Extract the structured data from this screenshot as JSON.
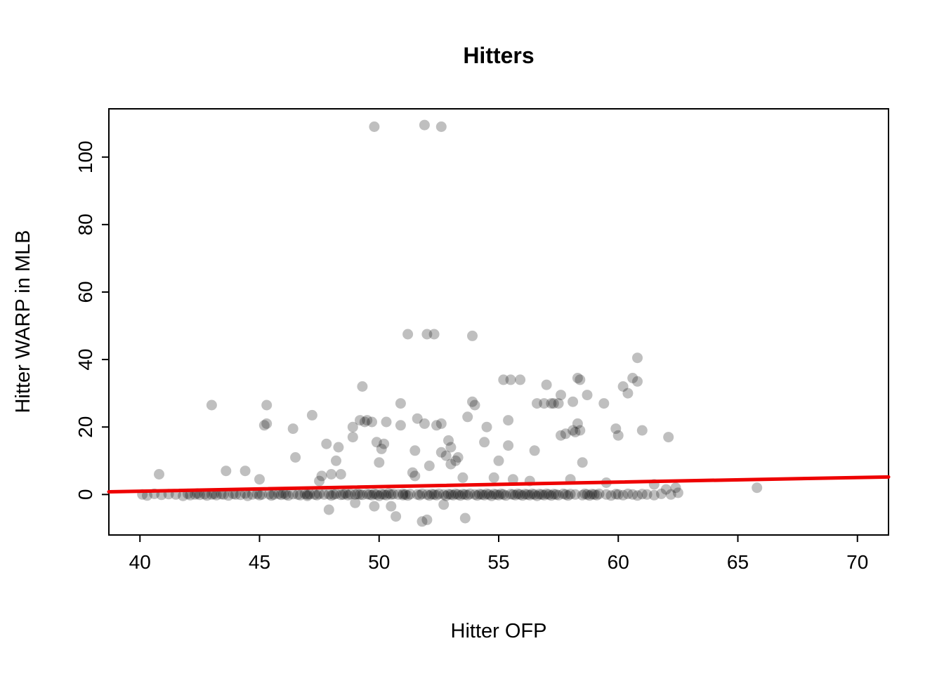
{
  "page": {
    "background_color": "#ffffff"
  },
  "chart_data": {
    "type": "scatter",
    "title": "Hitters",
    "xlabel": "Hitter OFP",
    "ylabel": "Hitter WARP in MLB",
    "xlim": [
      38.7,
      71.3
    ],
    "ylim": [
      -12,
      114.3
    ],
    "xticks": [
      40,
      45,
      50,
      55,
      60,
      65,
      70
    ],
    "yticks": [
      0,
      20,
      40,
      60,
      80,
      100
    ],
    "grid": false,
    "legend": "none",
    "point_style": {
      "color": "#000000",
      "opacity": 0.25,
      "radius": 7.5
    },
    "regression_line": {
      "color": "#EE0000",
      "width": 5,
      "x": [
        38.7,
        71.3
      ],
      "y": [
        0.8,
        5.2
      ]
    },
    "points": [
      [
        40.1,
        0
      ],
      [
        40.3,
        -0.3
      ],
      [
        40.6,
        0.2
      ],
      [
        40.8,
        6
      ],
      [
        40.9,
        -0.1
      ],
      [
        41.2,
        0.1
      ],
      [
        41.5,
        0
      ],
      [
        41.8,
        -0.4
      ],
      [
        42.0,
        0.2
      ],
      [
        42.1,
        -0.2
      ],
      [
        42.3,
        0
      ],
      [
        42.4,
        0.3
      ],
      [
        42.5,
        -0.1
      ],
      [
        42.7,
        0.1
      ],
      [
        42.8,
        -0.3
      ],
      [
        43.0,
        0
      ],
      [
        43.0,
        26.5
      ],
      [
        43.1,
        0.2
      ],
      [
        43.2,
        -0.2
      ],
      [
        43.4,
        0.1
      ],
      [
        43.5,
        0
      ],
      [
        43.6,
        7
      ],
      [
        43.7,
        -0.3
      ],
      [
        43.9,
        0.2
      ],
      [
        44.0,
        0
      ],
      [
        44.2,
        -0.1
      ],
      [
        44.4,
        7
      ],
      [
        44.4,
        0.3
      ],
      [
        44.5,
        -0.4
      ],
      [
        44.7,
        0
      ],
      [
        44.9,
        0.2
      ],
      [
        45.0,
        -0.2
      ],
      [
        45.0,
        4.5
      ],
      [
        45.1,
        0
      ],
      [
        45.2,
        20.5
      ],
      [
        45.3,
        26.5
      ],
      [
        45.3,
        21
      ],
      [
        45.4,
        0.1
      ],
      [
        45.5,
        -0.3
      ],
      [
        45.6,
        0
      ],
      [
        45.8,
        0.2
      ],
      [
        45.9,
        -0.1
      ],
      [
        46.0,
        0.3
      ],
      [
        46.1,
        0
      ],
      [
        46.2,
        -0.3
      ],
      [
        46.4,
        19.5
      ],
      [
        46.4,
        0.1
      ],
      [
        46.5,
        11
      ],
      [
        46.6,
        0
      ],
      [
        46.7,
        -0.2
      ],
      [
        46.9,
        0.2
      ],
      [
        47.0,
        0
      ],
      [
        47.0,
        -0.4
      ],
      [
        47.1,
        0.1
      ],
      [
        47.2,
        23.5
      ],
      [
        47.3,
        0
      ],
      [
        47.4,
        -0.2
      ],
      [
        47.5,
        4
      ],
      [
        47.5,
        0.2
      ],
      [
        47.6,
        5.5
      ],
      [
        47.7,
        0
      ],
      [
        47.8,
        15
      ],
      [
        47.9,
        -4.5
      ],
      [
        47.9,
        0.1
      ],
      [
        48.0,
        6
      ],
      [
        48.0,
        -0.3
      ],
      [
        48.1,
        0
      ],
      [
        48.2,
        10
      ],
      [
        48.2,
        0.2
      ],
      [
        48.3,
        14
      ],
      [
        48.4,
        6
      ],
      [
        48.4,
        -0.1
      ],
      [
        48.5,
        0
      ],
      [
        48.6,
        0.3
      ],
      [
        48.7,
        -0.2
      ],
      [
        48.8,
        0.1
      ],
      [
        48.9,
        20
      ],
      [
        48.9,
        17
      ],
      [
        49.0,
        0
      ],
      [
        49.0,
        -2.5
      ],
      [
        49.1,
        0.2
      ],
      [
        49.2,
        22
      ],
      [
        49.2,
        0
      ],
      [
        49.3,
        32
      ],
      [
        49.3,
        -0.1
      ],
      [
        49.4,
        21.5
      ],
      [
        49.5,
        22
      ],
      [
        49.5,
        0.1
      ],
      [
        49.6,
        0
      ],
      [
        49.7,
        21.5
      ],
      [
        49.7,
        -0.2
      ],
      [
        49.8,
        109
      ],
      [
        49.8,
        -3.5
      ],
      [
        49.8,
        0.2
      ],
      [
        49.9,
        15.5
      ],
      [
        49.9,
        0
      ],
      [
        50.0,
        9.5
      ],
      [
        50.0,
        -0.4
      ],
      [
        50.1,
        13.5
      ],
      [
        50.1,
        0.1
      ],
      [
        50.2,
        15
      ],
      [
        50.2,
        0
      ],
      [
        50.3,
        21.5
      ],
      [
        50.3,
        -0.2
      ],
      [
        50.4,
        0.3
      ],
      [
        50.5,
        0
      ],
      [
        50.5,
        -3.5
      ],
      [
        50.6,
        0.1
      ],
      [
        50.7,
        -6.5
      ],
      [
        50.8,
        0
      ],
      [
        50.9,
        27
      ],
      [
        50.9,
        20.5
      ],
      [
        51.0,
        -0.2
      ],
      [
        51.0,
        0.2
      ],
      [
        51.1,
        0
      ],
      [
        51.2,
        47.5
      ],
      [
        51.2,
        -0.3
      ],
      [
        51.3,
        0.1
      ],
      [
        51.4,
        6.5
      ],
      [
        51.5,
        13
      ],
      [
        51.5,
        5.5
      ],
      [
        51.6,
        22.5
      ],
      [
        51.6,
        0
      ],
      [
        51.7,
        -0.2
      ],
      [
        51.8,
        -8
      ],
      [
        51.8,
        0.2
      ],
      [
        51.9,
        109.5
      ],
      [
        51.9,
        21
      ],
      [
        52.0,
        47.5
      ],
      [
        52.0,
        -7.5
      ],
      [
        52.0,
        0
      ],
      [
        52.1,
        8.5
      ],
      [
        52.1,
        -0.3
      ],
      [
        52.2,
        0.1
      ],
      [
        52.3,
        47.5
      ],
      [
        52.3,
        0
      ],
      [
        52.4,
        20.5
      ],
      [
        52.4,
        -0.2
      ],
      [
        52.5,
        0.2
      ],
      [
        52.6,
        109
      ],
      [
        52.6,
        21
      ],
      [
        52.6,
        12.5
      ],
      [
        52.7,
        0
      ],
      [
        52.7,
        -3
      ],
      [
        52.8,
        11.5
      ],
      [
        52.8,
        -0.4
      ],
      [
        52.9,
        16
      ],
      [
        52.9,
        0.1
      ],
      [
        53.0,
        14
      ],
      [
        53.0,
        9
      ],
      [
        53.0,
        0
      ],
      [
        53.1,
        -0.2
      ],
      [
        53.2,
        10
      ],
      [
        53.2,
        0.2
      ],
      [
        53.3,
        11
      ],
      [
        53.3,
        0
      ],
      [
        53.4,
        -0.3
      ],
      [
        53.5,
        5
      ],
      [
        53.5,
        0.1
      ],
      [
        53.6,
        -7
      ],
      [
        53.6,
        0
      ],
      [
        53.7,
        23
      ],
      [
        53.7,
        -0.2
      ],
      [
        53.8,
        0.2
      ],
      [
        53.9,
        47
      ],
      [
        53.9,
        27.5
      ],
      [
        54.0,
        26.5
      ],
      [
        54.0,
        0
      ],
      [
        54.1,
        -0.3
      ],
      [
        54.2,
        0.1
      ],
      [
        54.3,
        0
      ],
      [
        54.4,
        15.5
      ],
      [
        54.4,
        -0.2
      ],
      [
        54.5,
        20
      ],
      [
        54.5,
        0.2
      ],
      [
        54.6,
        0
      ],
      [
        54.7,
        -0.4
      ],
      [
        54.8,
        5
      ],
      [
        54.8,
        0.1
      ],
      [
        54.9,
        0
      ],
      [
        55.0,
        10
      ],
      [
        55.0,
        -0.2
      ],
      [
        55.1,
        0.2
      ],
      [
        55.2,
        34
      ],
      [
        55.2,
        0
      ],
      [
        55.3,
        -0.3
      ],
      [
        55.4,
        22
      ],
      [
        55.4,
        14.5
      ],
      [
        55.5,
        34
      ],
      [
        55.5,
        0.1
      ],
      [
        55.6,
        4.5
      ],
      [
        55.6,
        0
      ],
      [
        55.7,
        -0.2
      ],
      [
        55.8,
        0.2
      ],
      [
        55.9,
        34
      ],
      [
        55.9,
        0
      ],
      [
        56.0,
        -0.3
      ],
      [
        56.1,
        0.1
      ],
      [
        56.2,
        0
      ],
      [
        56.3,
        4
      ],
      [
        56.3,
        -0.2
      ],
      [
        56.4,
        0.2
      ],
      [
        56.5,
        13
      ],
      [
        56.5,
        0
      ],
      [
        56.6,
        27
      ],
      [
        56.6,
        -0.4
      ],
      [
        56.7,
        0.1
      ],
      [
        56.8,
        0
      ],
      [
        56.9,
        27
      ],
      [
        56.9,
        -0.2
      ],
      [
        57.0,
        32.5
      ],
      [
        57.0,
        0.2
      ],
      [
        57.1,
        0
      ],
      [
        57.2,
        27
      ],
      [
        57.2,
        -0.3
      ],
      [
        57.3,
        27
      ],
      [
        57.3,
        0.1
      ],
      [
        57.4,
        0
      ],
      [
        57.5,
        27
      ],
      [
        57.5,
        -0.2
      ],
      [
        57.6,
        29.5
      ],
      [
        57.6,
        17.5
      ],
      [
        57.7,
        0.2
      ],
      [
        57.8,
        18
      ],
      [
        57.8,
        0
      ],
      [
        57.9,
        -0.3
      ],
      [
        58.0,
        4.5
      ],
      [
        58.0,
        0.1
      ],
      [
        58.1,
        19
      ],
      [
        58.1,
        27.5
      ],
      [
        58.2,
        18.5
      ],
      [
        58.2,
        0
      ],
      [
        58.3,
        34.5
      ],
      [
        58.3,
        21
      ],
      [
        58.4,
        34
      ],
      [
        58.4,
        19
      ],
      [
        58.5,
        9.5
      ],
      [
        58.5,
        -0.2
      ],
      [
        58.6,
        0.2
      ],
      [
        58.7,
        29.5
      ],
      [
        58.7,
        0
      ],
      [
        58.8,
        -0.3
      ],
      [
        58.9,
        0.1
      ],
      [
        59.0,
        0
      ],
      [
        59.1,
        -0.2
      ],
      [
        59.2,
        0.2
      ],
      [
        59.4,
        27
      ],
      [
        59.5,
        3.5
      ],
      [
        59.5,
        0
      ],
      [
        59.7,
        -0.3
      ],
      [
        59.9,
        19.5
      ],
      [
        59.9,
        0.1
      ],
      [
        60.0,
        17.5
      ],
      [
        60.0,
        0
      ],
      [
        60.2,
        32
      ],
      [
        60.2,
        -0.2
      ],
      [
        60.4,
        30
      ],
      [
        60.4,
        0.2
      ],
      [
        60.6,
        34.5
      ],
      [
        60.6,
        0
      ],
      [
        60.8,
        40.5
      ],
      [
        60.8,
        33.5
      ],
      [
        60.8,
        -0.3
      ],
      [
        61.0,
        19
      ],
      [
        61.0,
        0.1
      ],
      [
        61.2,
        0
      ],
      [
        61.5,
        3
      ],
      [
        61.5,
        -0.2
      ],
      [
        61.8,
        0.2
      ],
      [
        62.0,
        1.5
      ],
      [
        62.1,
        17
      ],
      [
        62.2,
        0
      ],
      [
        62.4,
        2
      ],
      [
        62.5,
        0.5
      ],
      [
        65.8,
        2
      ]
    ]
  }
}
